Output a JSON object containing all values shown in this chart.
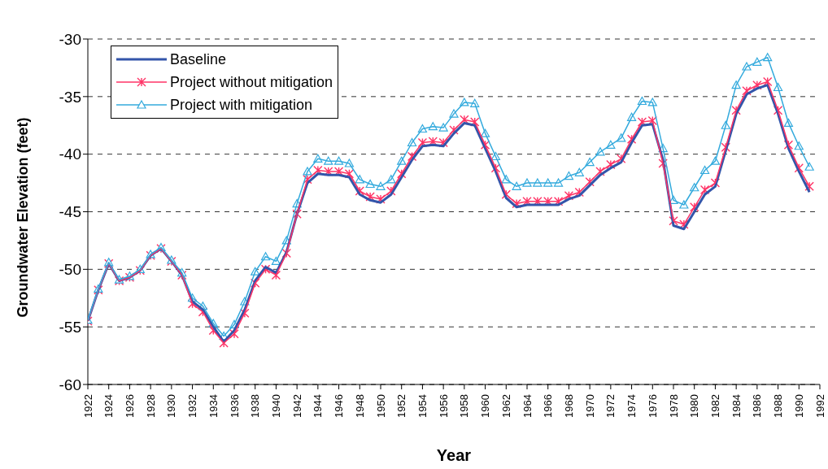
{
  "chart_data": {
    "type": "line",
    "xlabel": "Year",
    "ylabel": "Groundwater Elevation (feet)",
    "x": [
      1922,
      1923,
      1924,
      1925,
      1926,
      1927,
      1928,
      1929,
      1930,
      1931,
      1932,
      1933,
      1934,
      1935,
      1936,
      1937,
      1938,
      1939,
      1940,
      1941,
      1942,
      1943,
      1944,
      1945,
      1946,
      1947,
      1948,
      1949,
      1950,
      1951,
      1952,
      1953,
      1954,
      1955,
      1956,
      1957,
      1958,
      1959,
      1960,
      1961,
      1962,
      1963,
      1964,
      1965,
      1966,
      1967,
      1968,
      1969,
      1970,
      1971,
      1972,
      1973,
      1974,
      1975,
      1976,
      1977,
      1978,
      1979,
      1980,
      1981,
      1982,
      1983,
      1984,
      1985,
      1986,
      1987,
      1988,
      1989,
      1990,
      1991
    ],
    "series": [
      {
        "name": "Baseline",
        "color": "#3355aa",
        "marker": "none",
        "values": [
          -54.5,
          -51.8,
          -49.5,
          -51,
          -50.7,
          -50.1,
          -48.8,
          -48.2,
          -49.3,
          -50.5,
          -52.8,
          -53.5,
          -55,
          -56.3,
          -55.3,
          -53.5,
          -51,
          -49.8,
          -50.3,
          -48.5,
          -45.2,
          -42.5,
          -41.7,
          -41.8,
          -41.8,
          -42,
          -43.5,
          -44,
          -44.2,
          -43.5,
          -42,
          -40.5,
          -39.3,
          -39.2,
          -39.3,
          -38.2,
          -37.3,
          -37.5,
          -39.5,
          -41.5,
          -43.8,
          -44.6,
          -44.4,
          -44.4,
          -44.4,
          -44.4,
          -43.9,
          -43.6,
          -42.7,
          -41.8,
          -41.2,
          -40.7,
          -39,
          -37.5,
          -37.4,
          -40.5,
          -46.2,
          -46.5,
          -45,
          -43.5,
          -42.8,
          -39.7,
          -36.5,
          -34.8,
          -34.3,
          -34,
          -36.5,
          -39.5,
          -41.5,
          -43.3
        ]
      },
      {
        "name": "Project without mitigation",
        "color": "#ff3366",
        "marker": "cross",
        "values": [
          -54.5,
          -51.8,
          -49.5,
          -51,
          -50.7,
          -50.1,
          -48.8,
          -48.2,
          -49.3,
          -50.5,
          -53,
          -53.7,
          -55.3,
          -56.4,
          -55.6,
          -53.8,
          -51.2,
          -50,
          -50.5,
          -48.6,
          -45.2,
          -42.2,
          -41.4,
          -41.5,
          -41.5,
          -41.7,
          -43.2,
          -43.7,
          -43.9,
          -43.2,
          -41.7,
          -40.2,
          -39,
          -38.9,
          -39,
          -37.9,
          -37,
          -37.2,
          -39.2,
          -41.2,
          -43.5,
          -44.3,
          -44.1,
          -44.1,
          -44.1,
          -44.1,
          -43.6,
          -43.3,
          -42.4,
          -41.5,
          -40.9,
          -40.4,
          -38.7,
          -37.2,
          -37.1,
          -40.8,
          -45.8,
          -46.1,
          -44.6,
          -43.1,
          -42.5,
          -39.4,
          -36.2,
          -34.5,
          -34,
          -33.7,
          -36.2,
          -39.2,
          -41.2,
          -42.8
        ]
      },
      {
        "name": "Project with mitigation",
        "color": "#33aadd",
        "marker": "triangle",
        "values": [
          -54.4,
          -51.7,
          -49.4,
          -50.9,
          -50.6,
          -50,
          -48.7,
          -48.1,
          -49.2,
          -50.3,
          -52.5,
          -53.2,
          -54.7,
          -55.8,
          -54.8,
          -52.8,
          -50.2,
          -48.9,
          -49.3,
          -47.5,
          -44.3,
          -41.5,
          -40.4,
          -40.6,
          -40.6,
          -40.8,
          -42.2,
          -42.6,
          -42.8,
          -42.2,
          -40.6,
          -39,
          -37.8,
          -37.6,
          -37.7,
          -36.5,
          -35.5,
          -35.6,
          -38.2,
          -40.2,
          -42.2,
          -42.8,
          -42.5,
          -42.5,
          -42.5,
          -42.5,
          -41.9,
          -41.6,
          -40.7,
          -39.8,
          -39.2,
          -38.6,
          -36.8,
          -35.4,
          -35.5,
          -39.5,
          -44,
          -44.4,
          -42.9,
          -41.4,
          -40.6,
          -37.5,
          -34,
          -32.4,
          -32,
          -31.6,
          -34.2,
          -37.3,
          -39.3,
          -41.1
        ]
      }
    ],
    "xlim": [
      1922,
      1992
    ],
    "xticks": [
      1922,
      1924,
      1926,
      1928,
      1930,
      1932,
      1934,
      1936,
      1938,
      1940,
      1942,
      1944,
      1946,
      1948,
      1950,
      1952,
      1954,
      1956,
      1958,
      1960,
      1962,
      1964,
      1966,
      1968,
      1970,
      1972,
      1974,
      1976,
      1978,
      1980,
      1982,
      1984,
      1986,
      1988,
      1990,
      1992
    ],
    "ylim": [
      -60,
      -30
    ],
    "yticks": [
      -60,
      -55,
      -50,
      -45,
      -40,
      -35,
      -30
    ],
    "grid": "y",
    "legend": "top left",
    "line_style": "solid"
  }
}
